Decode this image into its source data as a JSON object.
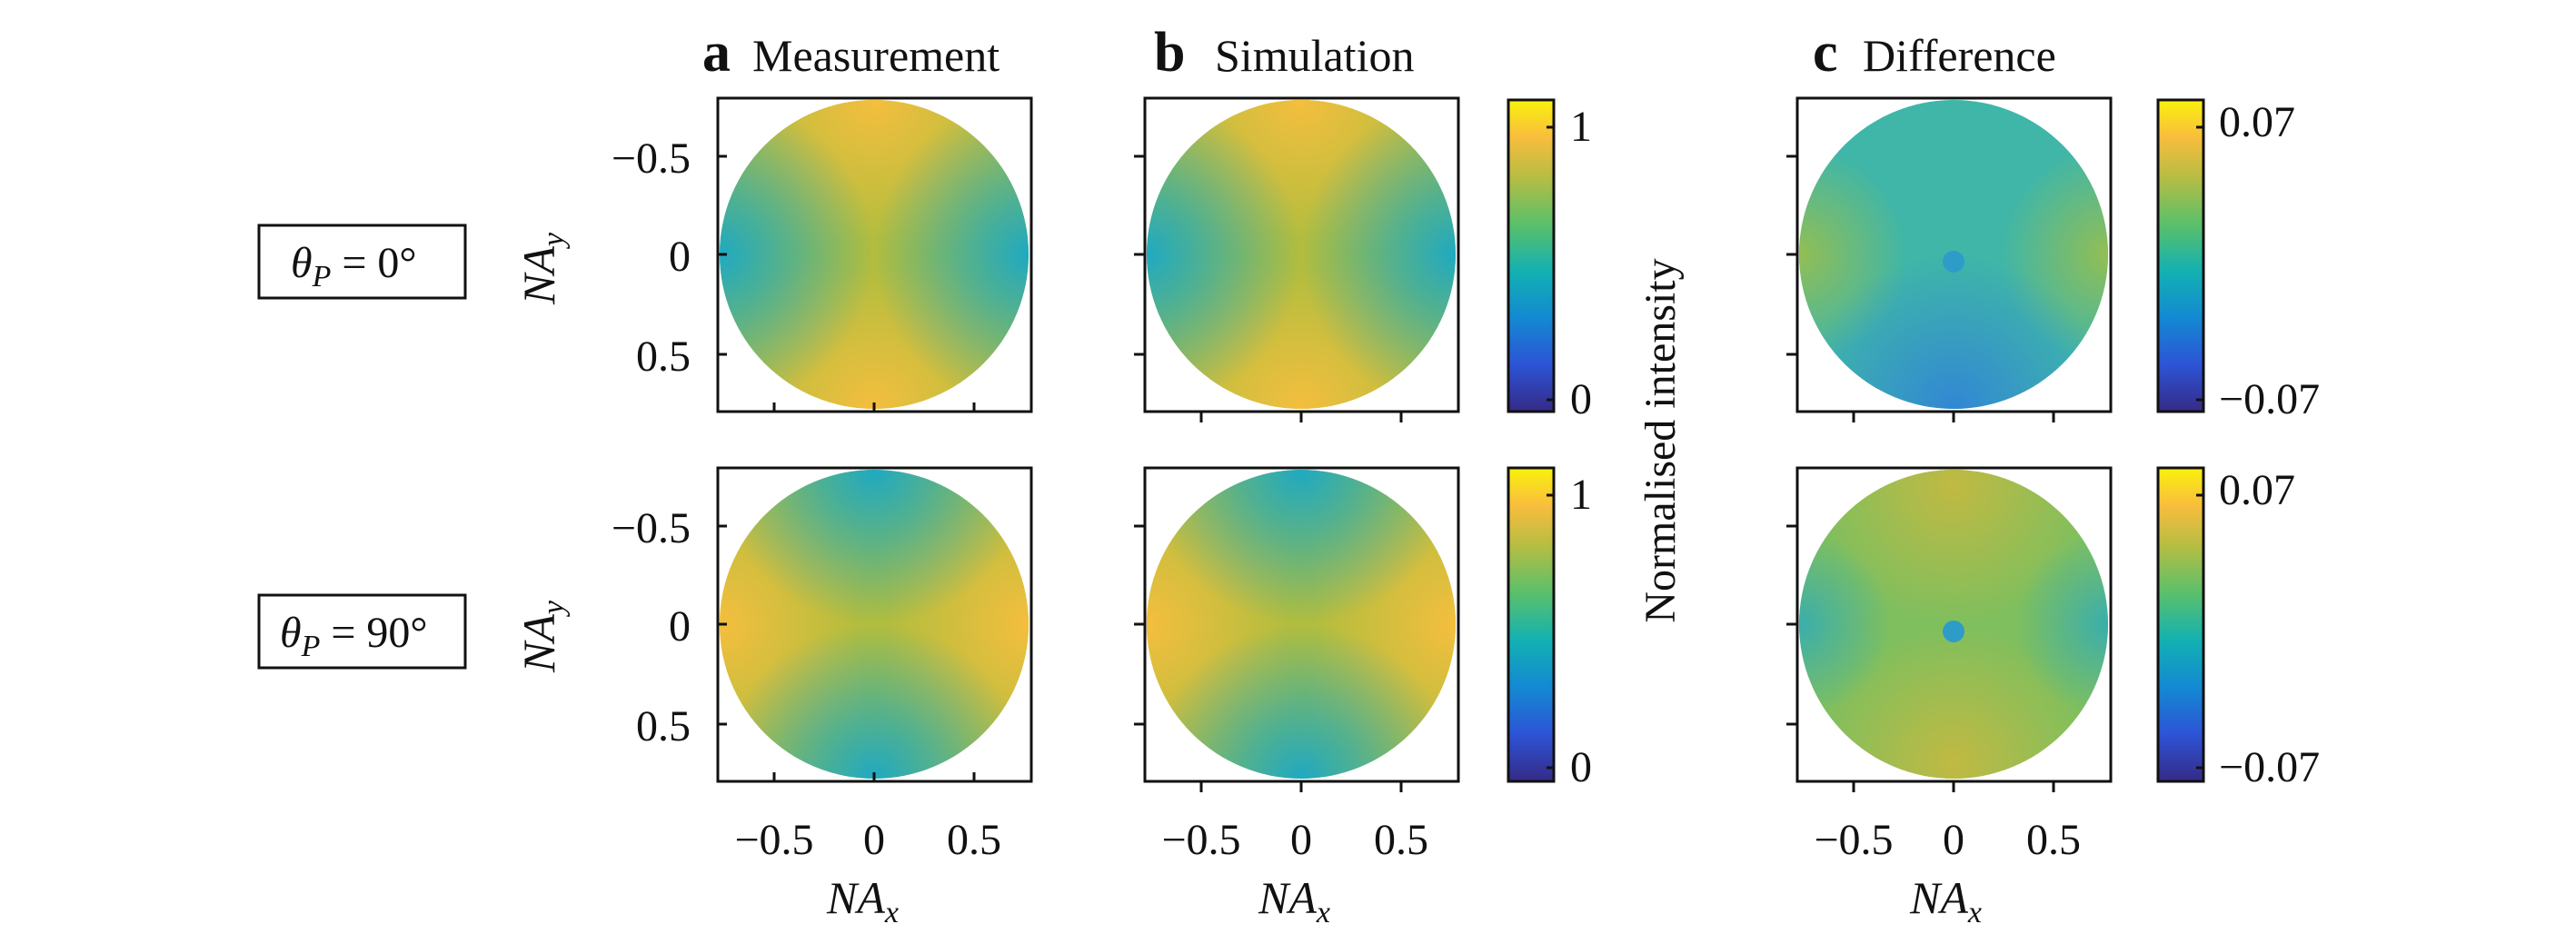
{
  "panels": {
    "a": {
      "letter": "a",
      "title": "Measurement"
    },
    "b": {
      "letter": "b",
      "title": "Simulation"
    },
    "c": {
      "letter": "c",
      "title": "Difference"
    }
  },
  "rows": [
    {
      "symbol": "θ",
      "subscript": "P",
      "value": " = 0°"
    },
    {
      "symbol": "θ",
      "subscript": "P",
      "value": " = 90°"
    }
  ],
  "axes": {
    "x_label_main": "NA",
    "x_label_sub": "x",
    "y_label_main": "NA",
    "y_label_sub": "y",
    "x_ticks": [
      "−0.5",
      "0",
      "0.5"
    ],
    "y_ticks": [
      "−0.5",
      "0",
      "0.5"
    ]
  },
  "colorbars": {
    "intensity": {
      "max_label": "1",
      "min_label": "0",
      "title": "Normalised intensity"
    },
    "difference": {
      "max_label": "0.07",
      "min_label": "−0.07"
    }
  },
  "chart_data": {
    "type": "heatmap",
    "x_range": [
      -0.8,
      0.8
    ],
    "y_range": [
      -0.8,
      0.8
    ],
    "x_ticks": [
      -0.5,
      0,
      0.5
    ],
    "y_ticks": [
      -0.5,
      0,
      0.5
    ],
    "pupil_radius_NA": 0.78,
    "colormap": "parula",
    "colormap_stops": [
      "#352a87",
      "#2d54d6",
      "#1389d2",
      "#13b1b2",
      "#5ac06b",
      "#b5bd43",
      "#f9bd3d",
      "#f9f20c"
    ],
    "intensity_range": [
      0,
      1
    ],
    "difference_range": [
      -0.07,
      0.07
    ]
  }
}
